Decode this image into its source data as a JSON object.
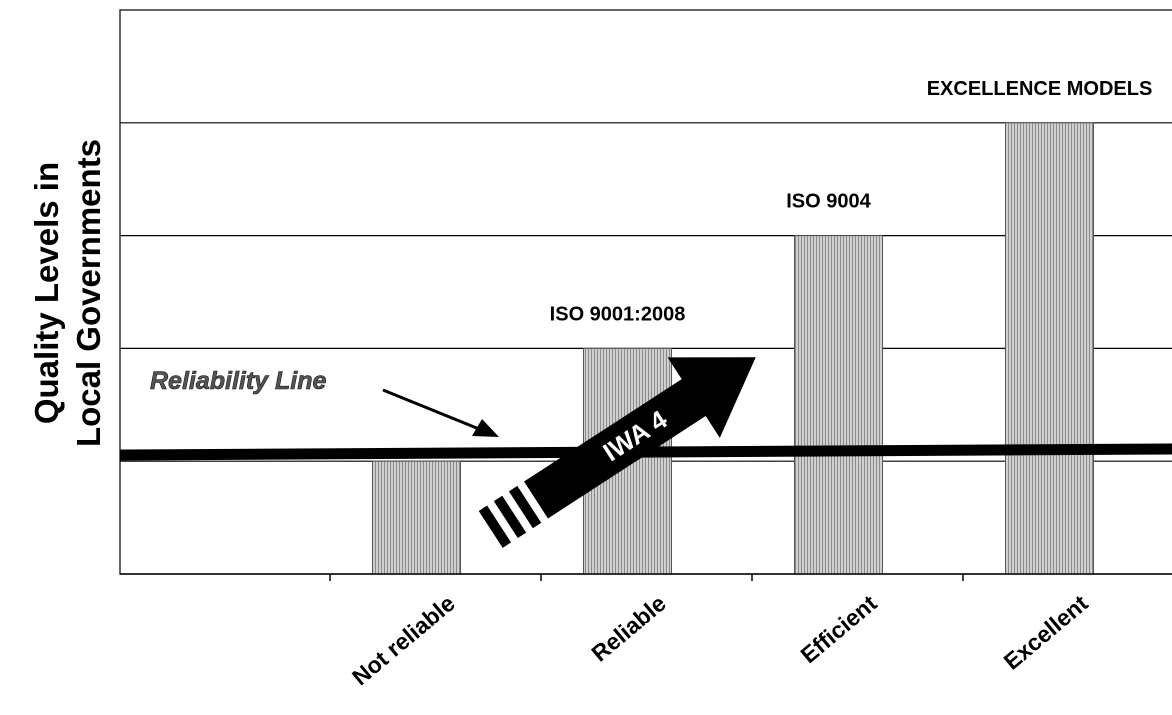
{
  "chart_data": {
    "type": "bar",
    "categories": [
      "Not reliable",
      "Reliable",
      "Efficient",
      "Excellent"
    ],
    "values": [
      1,
      2,
      3,
      4
    ],
    "ylim": [
      0,
      5
    ],
    "grid": true,
    "ylabel_lines": [
      "Quality Levels in",
      "Local Governments"
    ],
    "bar_labels": [
      "",
      "ISO 9001:2008",
      "ISO 9004",
      "EXCELLENCE MODELS"
    ],
    "reliability_line_label": "Reliability Line",
    "arrow_label": "IWA 4",
    "colors": {
      "bar_fill": "#c8c8c8",
      "bar_hatch": "#8a8a8a",
      "axis": "#000000",
      "arrow": "#000000",
      "arrow_text": "#ffffff"
    }
  }
}
